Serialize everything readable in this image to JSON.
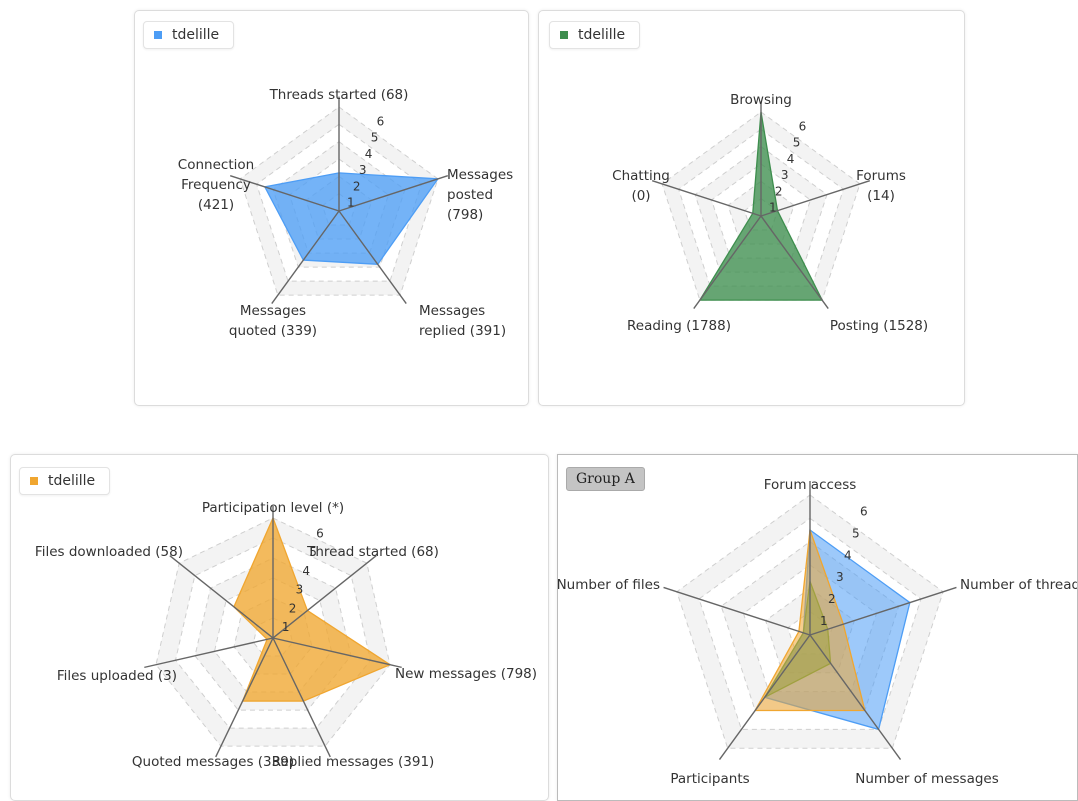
{
  "chart_data": [
    {
      "type": "radar",
      "legend": [
        "tdelille"
      ],
      "color": "#4d9df5",
      "scale": {
        "min": 0,
        "max": 6,
        "ticks": [
          "1",
          "2",
          "3",
          "4",
          "5",
          "6"
        ]
      },
      "axes": [
        {
          "label": [
            "Threads started (68)"
          ],
          "value": 2.2
        },
        {
          "label": [
            "Messages",
            "posted",
            "(798)"
          ],
          "value": 6
        },
        {
          "label": [
            "Messages",
            "replied (391)"
          ],
          "value": 3.8
        },
        {
          "label": [
            "Messages",
            "quoted (339)"
          ],
          "value": 3.5
        },
        {
          "label": [
            "Connection",
            "Frequency",
            "(421)"
          ],
          "value": 4.5
        }
      ]
    },
    {
      "type": "radar",
      "legend": [
        "tdelille"
      ],
      "color": "#3e8e4e",
      "scale": {
        "min": 0,
        "max": 6,
        "ticks": [
          "1",
          "2",
          "3",
          "4",
          "5",
          "6"
        ]
      },
      "axes": [
        {
          "label": [
            "Browsing"
          ],
          "value": 6
        },
        {
          "label": [
            "Forums",
            "(14)"
          ],
          "value": 1
        },
        {
          "label": [
            "Posting (1528)"
          ],
          "value": 6
        },
        {
          "label": [
            "Reading (1788)"
          ],
          "value": 6
        },
        {
          "label": [
            "Chatting",
            "(0)"
          ],
          "value": 0.5
        }
      ]
    },
    {
      "type": "radar",
      "legend": [
        "tdelille"
      ],
      "color": "#f0a630",
      "scale": {
        "min": 0,
        "max": 6,
        "ticks": [
          "1",
          "2",
          "3",
          "4",
          "5",
          "6"
        ]
      },
      "axes": [
        {
          "label": [
            "Participation level (*)"
          ],
          "value": 6
        },
        {
          "label": [
            "Thread started (68)"
          ],
          "value": 2.2
        },
        {
          "label": [
            "New messages (798)"
          ],
          "value": 6
        },
        {
          "label": [
            "Replied messages (391)"
          ],
          "value": 3.5
        },
        {
          "label": [
            "Quoted messages (339)"
          ],
          "value": 3.5
        },
        {
          "label": [
            "Files uploaded (3)"
          ],
          "value": 0.3
        },
        {
          "label": [
            "Files downloaded (58)"
          ],
          "value": 2.5
        }
      ]
    },
    {
      "type": "radar",
      "group_label": "Group A",
      "scale": {
        "min": 0,
        "max": 6,
        "ticks": [
          "1",
          "2",
          "3",
          "4",
          "5",
          "6"
        ]
      },
      "axes": [
        {
          "label": [
            "Forum access"
          ]
        },
        {
          "label": [
            "Number of threads"
          ]
        },
        {
          "label": [
            "Number of messages"
          ]
        },
        {
          "label": [
            "Participants"
          ]
        },
        {
          "label": [
            "Number of files"
          ]
        }
      ],
      "series": [
        {
          "color": "#4d9df5",
          "values": [
            4.5,
            4.5,
            5,
            3.3,
            0.3
          ]
        },
        {
          "color": "#3e9a55",
          "values": [
            2.3,
            0.8,
            1.5,
            3.3,
            0.3
          ]
        },
        {
          "color": "#f0a630",
          "values": [
            4.5,
            1.5,
            4,
            4,
            0.5
          ]
        }
      ]
    }
  ]
}
